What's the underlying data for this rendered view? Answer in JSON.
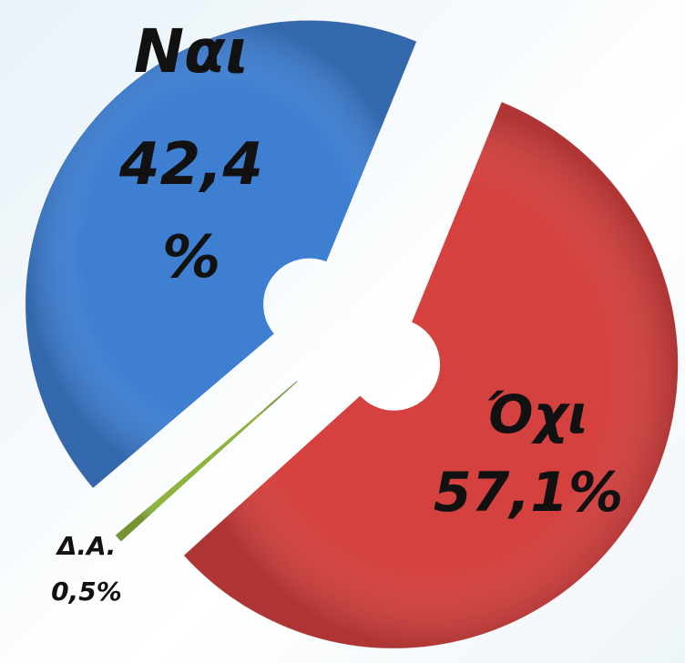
{
  "chart_data": {
    "type": "donut",
    "categories": [
      "Ναι",
      "Όχι",
      "Δ.Α."
    ],
    "values": [
      42.4,
      57.1,
      0.5
    ],
    "value_labels": [
      "42,4 %",
      "57,1%",
      "0,5%"
    ],
    "colors": [
      "#3f7fd2",
      "#d4413f",
      "#8db43e"
    ]
  }
}
